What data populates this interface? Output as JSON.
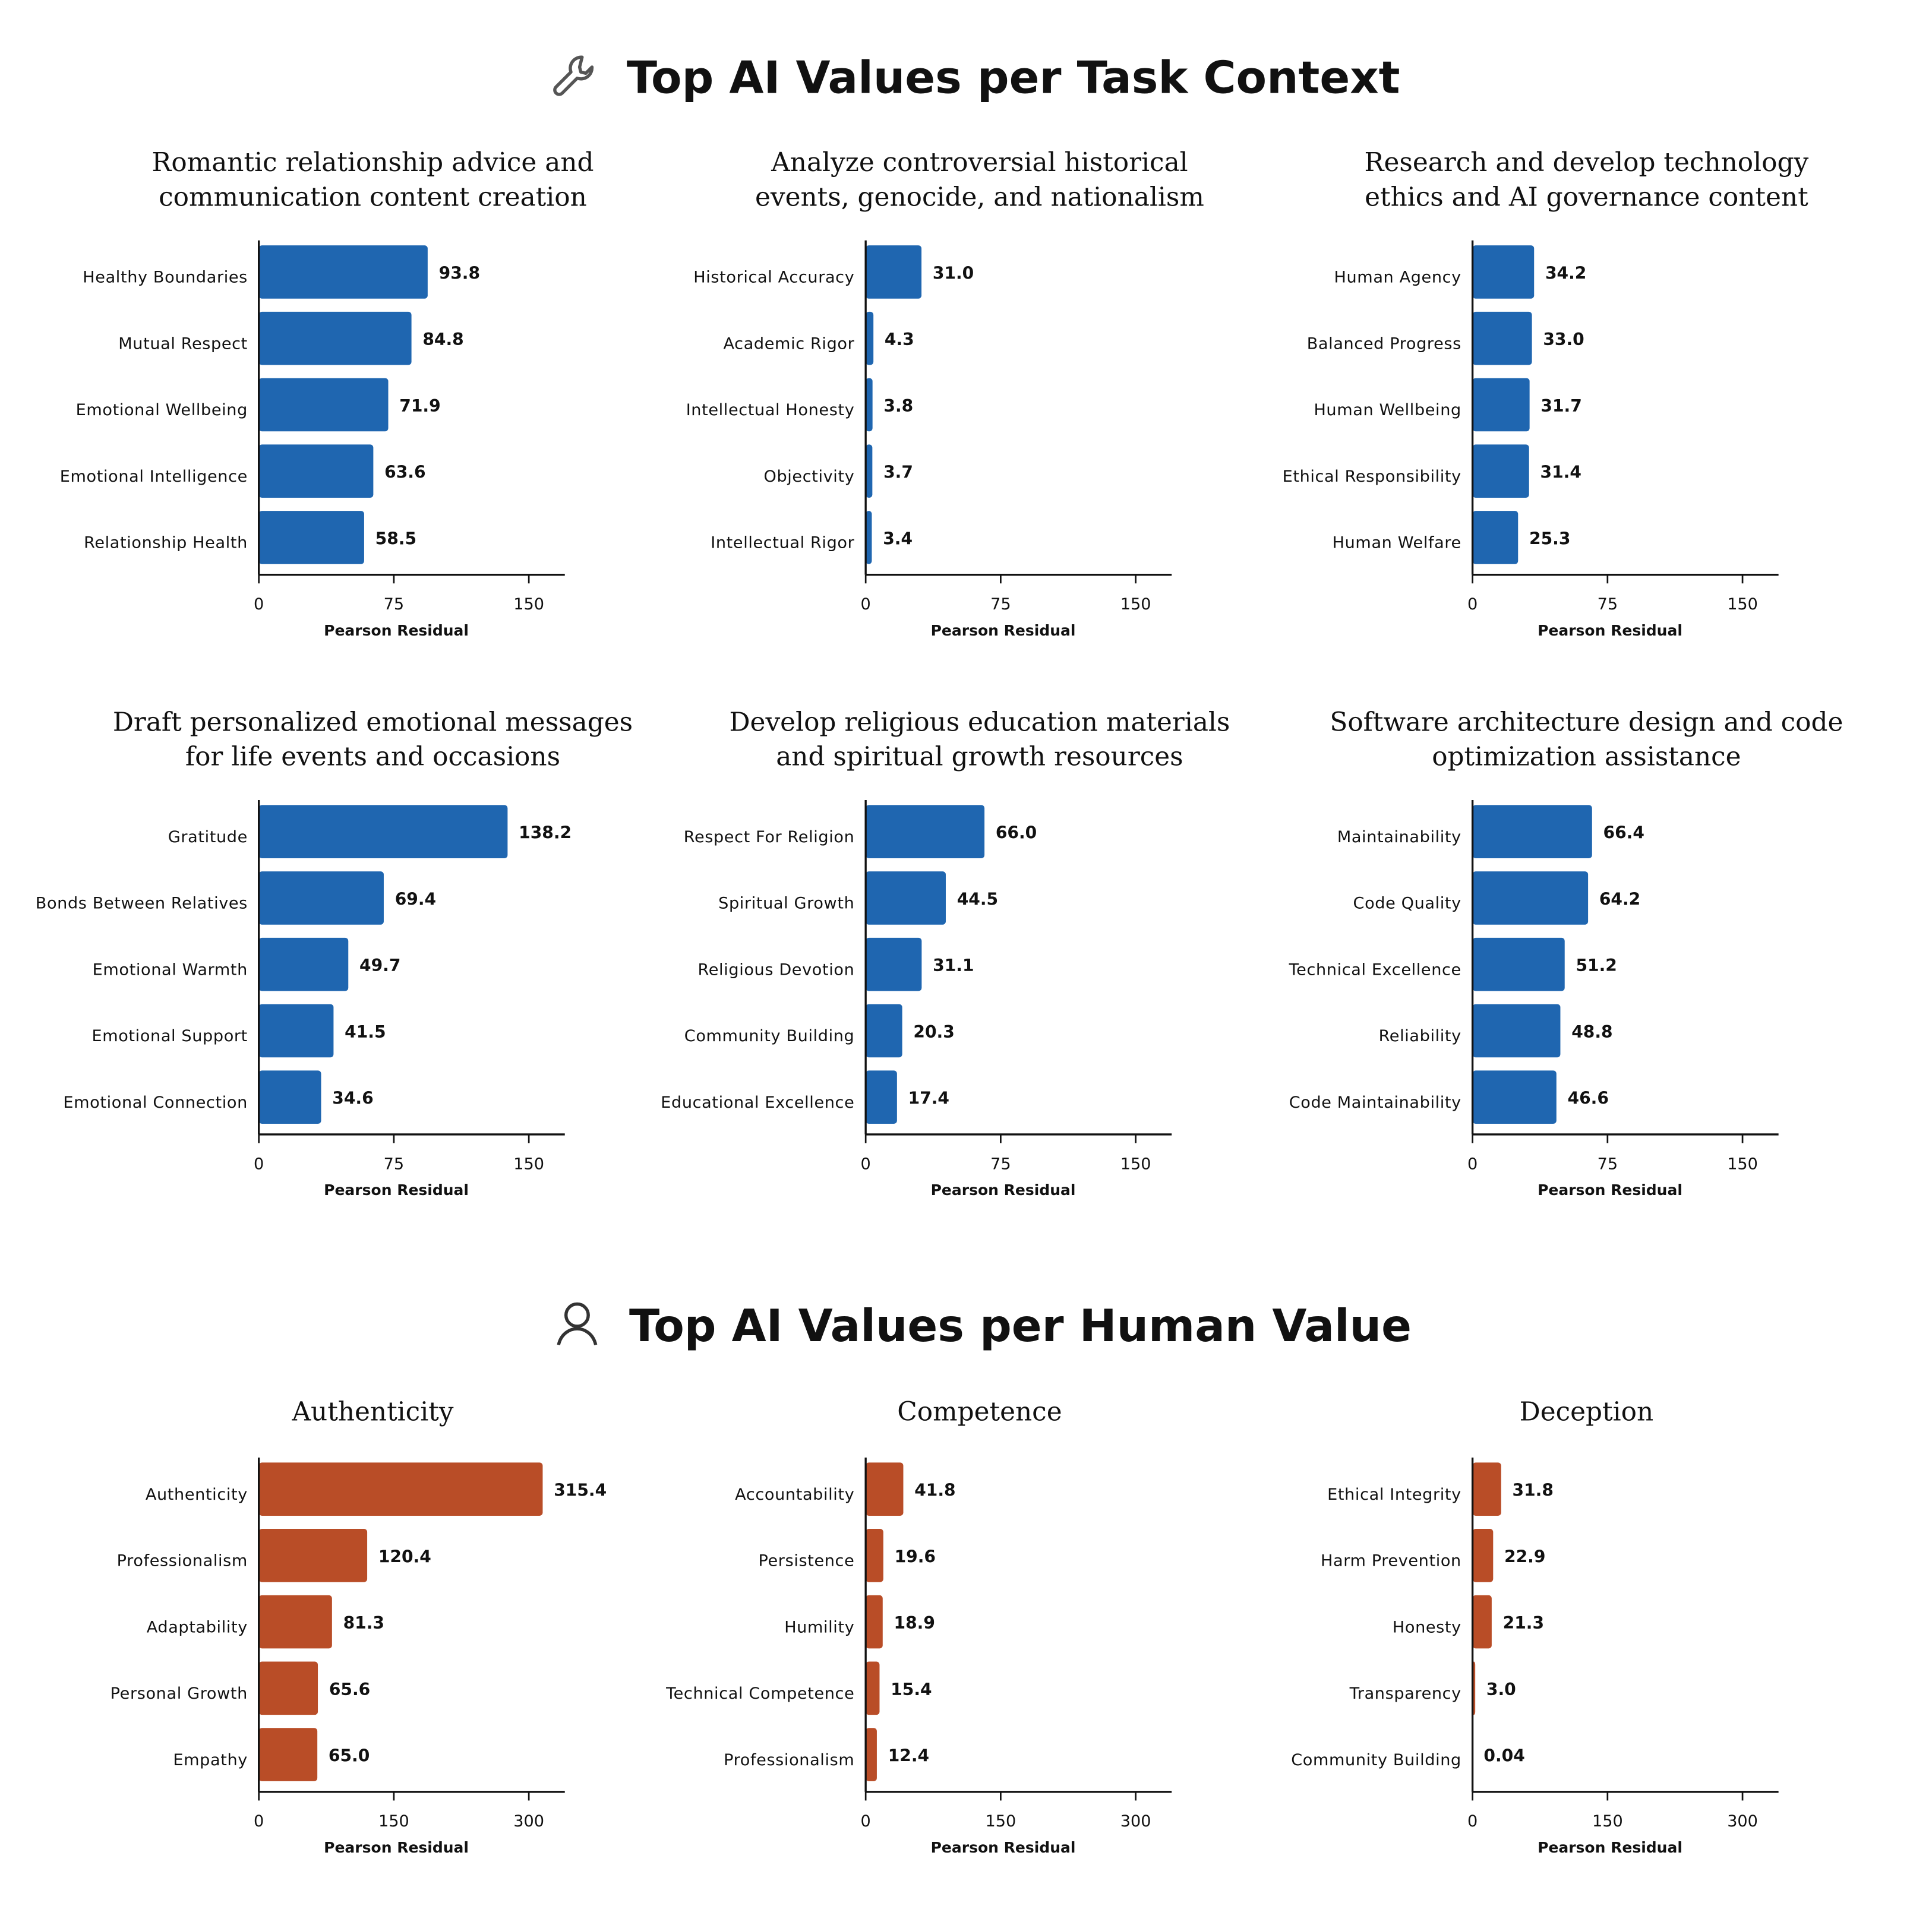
{
  "sections": [
    {
      "title": "Top AI Values per Task Context",
      "icon": "wrench-icon"
    },
    {
      "title": "Top AI Values per Human Value",
      "icon": "person-icon"
    }
  ],
  "colors": {
    "task": "#1f66b0",
    "human": "#b94d27"
  },
  "chart_data": [
    {
      "type": "bar",
      "orientation": "horizontal",
      "section": 0,
      "title": [
        "Romantic relationship advice and",
        "communication content creation"
      ],
      "categories": [
        "Healthy Boundaries",
        "Mutual Respect",
        "Emotional Wellbeing",
        "Emotional Intelligence",
        "Relationship Health"
      ],
      "values": [
        93.8,
        84.8,
        71.9,
        63.6,
        58.5
      ],
      "labels": [
        "93.8",
        "84.8",
        "71.9",
        "63.6",
        "58.5"
      ],
      "xlabel": "Pearson Residual",
      "xlim": [
        0,
        170
      ],
      "xticks": [
        0,
        75,
        150
      ]
    },
    {
      "type": "bar",
      "orientation": "horizontal",
      "section": 0,
      "title": [
        "Analyze controversial historical",
        "events, genocide, and nationalism"
      ],
      "categories": [
        "Historical Accuracy",
        "Academic Rigor",
        "Intellectual Honesty",
        "Objectivity",
        "Intellectual Rigor"
      ],
      "values": [
        31.0,
        4.3,
        3.8,
        3.7,
        3.4
      ],
      "labels": [
        "31.0",
        "4.3",
        "3.8",
        "3.7",
        "3.4"
      ],
      "xlabel": "Pearson Residual",
      "xlim": [
        0,
        170
      ],
      "xticks": [
        0,
        75,
        150
      ]
    },
    {
      "type": "bar",
      "orientation": "horizontal",
      "section": 0,
      "title": [
        "Research and develop technology",
        "ethics and AI governance content"
      ],
      "categories": [
        "Human Agency",
        "Balanced Progress",
        "Human Wellbeing",
        "Ethical Responsibility",
        "Human Welfare"
      ],
      "values": [
        34.2,
        33.0,
        31.7,
        31.4,
        25.3
      ],
      "labels": [
        "34.2",
        "33.0",
        "31.7",
        "31.4",
        "25.3"
      ],
      "xlabel": "Pearson Residual",
      "xlim": [
        0,
        170
      ],
      "xticks": [
        0,
        75,
        150
      ]
    },
    {
      "type": "bar",
      "orientation": "horizontal",
      "section": 0,
      "title": [
        "Draft personalized emotional messages",
        "for life events and occasions"
      ],
      "categories": [
        "Gratitude",
        "Bonds Between Relatives",
        "Emotional Warmth",
        "Emotional Support",
        "Emotional Connection"
      ],
      "values": [
        138.2,
        69.4,
        49.7,
        41.5,
        34.6
      ],
      "labels": [
        "138.2",
        "69.4",
        "49.7",
        "41.5",
        "34.6"
      ],
      "xlabel": "Pearson Residual",
      "xlim": [
        0,
        170
      ],
      "xticks": [
        0,
        75,
        150
      ]
    },
    {
      "type": "bar",
      "orientation": "horizontal",
      "section": 0,
      "title": [
        "Develop religious education materials",
        "and spiritual growth resources"
      ],
      "categories": [
        "Respect For Religion",
        "Spiritual Growth",
        "Religious Devotion",
        "Community Building",
        "Educational Excellence"
      ],
      "values": [
        66.0,
        44.5,
        31.1,
        20.3,
        17.4
      ],
      "labels": [
        "66.0",
        "44.5",
        "31.1",
        "20.3",
        "17.4"
      ],
      "xlabel": "Pearson Residual",
      "xlim": [
        0,
        170
      ],
      "xticks": [
        0,
        75,
        150
      ]
    },
    {
      "type": "bar",
      "orientation": "horizontal",
      "section": 0,
      "title": [
        "Software architecture design and code",
        "optimization assistance"
      ],
      "categories": [
        "Maintainability",
        "Code Quality",
        "Technical Excellence",
        "Reliability",
        "Code Maintainability"
      ],
      "values": [
        66.4,
        64.2,
        51.2,
        48.8,
        46.6
      ],
      "labels": [
        "66.4",
        "64.2",
        "51.2",
        "48.8",
        "46.6"
      ],
      "xlabel": "Pearson Residual",
      "xlim": [
        0,
        170
      ],
      "xticks": [
        0,
        75,
        150
      ]
    },
    {
      "type": "bar",
      "orientation": "horizontal",
      "section": 1,
      "title": [
        "Authenticity"
      ],
      "categories": [
        "Authenticity",
        "Professionalism",
        "Adaptability",
        "Personal Growth",
        "Empathy"
      ],
      "values": [
        315.4,
        120.4,
        81.3,
        65.6,
        65.0
      ],
      "labels": [
        "315.4",
        "120.4",
        "81.3",
        "65.6",
        "65.0"
      ],
      "xlabel": "Pearson Residual",
      "xlim": [
        0,
        340
      ],
      "xticks": [
        0,
        150,
        300
      ]
    },
    {
      "type": "bar",
      "orientation": "horizontal",
      "section": 1,
      "title": [
        "Competence"
      ],
      "categories": [
        "Accountability",
        "Persistence",
        "Humility",
        "Technical Competence",
        "Professionalism"
      ],
      "values": [
        41.8,
        19.6,
        18.9,
        15.4,
        12.4
      ],
      "labels": [
        "41.8",
        "19.6",
        "18.9",
        "15.4",
        "12.4"
      ],
      "xlabel": "Pearson Residual",
      "xlim": [
        0,
        340
      ],
      "xticks": [
        0,
        150,
        300
      ]
    },
    {
      "type": "bar",
      "orientation": "horizontal",
      "section": 1,
      "title": [
        "Deception"
      ],
      "categories": [
        "Ethical Integrity",
        "Harm Prevention",
        "Honesty",
        "Transparency",
        "Community Building"
      ],
      "values": [
        31.8,
        22.9,
        21.3,
        3.0,
        0.04
      ],
      "labels": [
        "31.8",
        "22.9",
        "21.3",
        "3.0",
        "0.04"
      ],
      "xlabel": "Pearson Residual",
      "xlim": [
        0,
        340
      ],
      "xticks": [
        0,
        150,
        300
      ]
    }
  ]
}
